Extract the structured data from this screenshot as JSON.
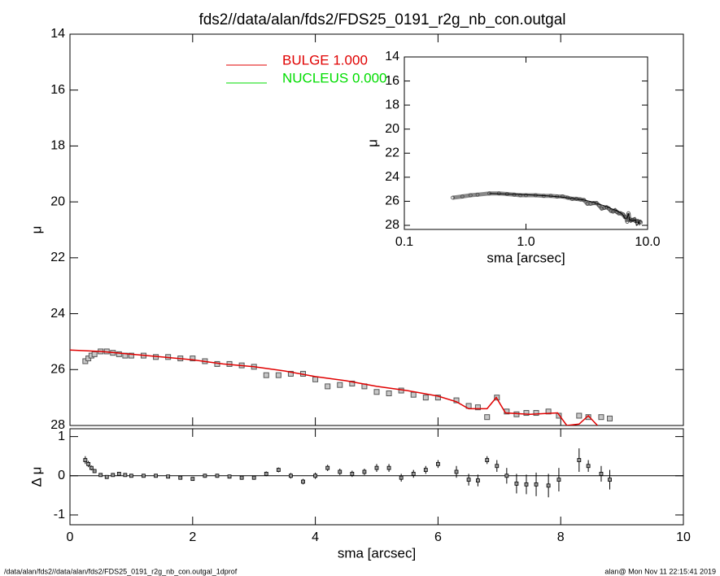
{
  "title": "fds2//data/alan/fds2/FDS25_0191_r2g_nb_con.outgal",
  "footer": {
    "left": "/data/alan/fds2//data/alan/fds2/FDS25_0191_r2g_nb_con.outgal_1dprof",
    "right": "alan@  Mon Nov 11 22:15:41 2019"
  },
  "chart_data": [
    {
      "type": "line",
      "ylabel": "μ",
      "xlim": [
        0,
        10
      ],
      "xticks": [
        0,
        2,
        4,
        6,
        8,
        10
      ],
      "x_tick_labels": false,
      "ylim": [
        28,
        14
      ],
      "yticks": [
        14,
        16,
        18,
        20,
        22,
        24,
        26,
        28
      ],
      "points": {
        "color": "#555555",
        "x": [
          0.25,
          0.3,
          0.35,
          0.4,
          0.5,
          0.6,
          0.7,
          0.8,
          0.9,
          1.0,
          1.2,
          1.4,
          1.6,
          1.8,
          2.0,
          2.2,
          2.4,
          2.6,
          2.8,
          3.0,
          3.2,
          3.4,
          3.6,
          3.8,
          4.0,
          4.2,
          4.4,
          4.6,
          4.8,
          5.0,
          5.2,
          5.4,
          5.6,
          5.8,
          6.0,
          6.3,
          6.5,
          6.65,
          6.8,
          6.96,
          7.12,
          7.28,
          7.44,
          7.6,
          7.8,
          7.97,
          8.3,
          8.45,
          8.66,
          8.8
        ],
        "values": [
          25.7,
          25.6,
          25.5,
          25.45,
          25.35,
          25.35,
          25.4,
          25.45,
          25.5,
          25.5,
          25.5,
          25.55,
          25.55,
          25.6,
          25.6,
          25.7,
          25.8,
          25.8,
          25.85,
          25.9,
          26.2,
          26.2,
          26.15,
          26.15,
          26.35,
          26.6,
          26.55,
          26.5,
          26.6,
          26.8,
          26.85,
          26.75,
          26.9,
          27.0,
          27.0,
          27.1,
          27.3,
          27.35,
          27.7,
          27.0,
          27.5,
          27.6,
          27.55,
          27.55,
          27.5,
          27.65,
          27.65,
          27.7,
          27.7,
          27.75
        ]
      },
      "series": [
        {
          "name": "BULGE  1.000",
          "color": "#e00000",
          "x": [
            0,
            0.5,
            1,
            1.5,
            2,
            2.5,
            3,
            3.5,
            4,
            4.5,
            5,
            5.5,
            6,
            6.3,
            6.5,
            6.8,
            6.95,
            7.1,
            7.5,
            7.95,
            8.1,
            8.3,
            8.45,
            8.6
          ],
          "values": [
            25.3,
            25.35,
            25.45,
            25.55,
            25.65,
            25.8,
            25.9,
            26.05,
            26.25,
            26.4,
            26.6,
            26.75,
            26.95,
            27.15,
            27.4,
            27.4,
            27.0,
            27.55,
            27.6,
            27.55,
            28.0,
            27.95,
            27.65,
            28.0
          ]
        },
        {
          "name": "NUCLEUS  0.000",
          "color": "#00dd00"
        }
      ]
    },
    {
      "type": "errorbar",
      "ylabel": "Δ μ",
      "xlabel": "sma [arcsec]",
      "xlim": [
        0,
        10
      ],
      "xticks": [
        0,
        2,
        4,
        6,
        8,
        10
      ],
      "x_tick_labels": true,
      "ylim": [
        -1.25,
        1.2
      ],
      "yticks": [
        -1,
        0,
        1
      ],
      "reference_line": 0,
      "color": "#000000",
      "x": [
        0.25,
        0.3,
        0.35,
        0.4,
        0.5,
        0.6,
        0.7,
        0.8,
        0.9,
        1.0,
        1.2,
        1.4,
        1.6,
        1.8,
        2.0,
        2.2,
        2.4,
        2.6,
        2.8,
        3.0,
        3.2,
        3.4,
        3.6,
        3.8,
        4.0,
        4.2,
        4.4,
        4.6,
        4.8,
        5.0,
        5.2,
        5.4,
        5.6,
        5.8,
        6.0,
        6.3,
        6.5,
        6.65,
        6.8,
        6.96,
        7.12,
        7.28,
        7.44,
        7.6,
        7.8,
        7.97,
        8.3,
        8.45,
        8.66,
        8.8
      ],
      "values": [
        0.4,
        0.3,
        0.2,
        0.12,
        0.02,
        -0.03,
        0.02,
        0.05,
        0.02,
        0.0,
        0.0,
        0.0,
        -0.02,
        -0.05,
        -0.08,
        0.0,
        0.0,
        -0.02,
        -0.05,
        -0.05,
        0.05,
        0.15,
        0.0,
        -0.15,
        0.0,
        0.2,
        0.1,
        0.05,
        0.1,
        0.2,
        0.2,
        -0.05,
        0.05,
        0.15,
        0.3,
        0.1,
        -0.1,
        -0.12,
        0.4,
        0.25,
        0.0,
        -0.2,
        -0.22,
        -0.22,
        -0.25,
        -0.1,
        0.4,
        0.25,
        0.05,
        -0.1
      ],
      "errors": [
        0.1,
        0.08,
        0.06,
        0.05,
        0.04,
        0.04,
        0.04,
        0.04,
        0.04,
        0.04,
        0.04,
        0.04,
        0.04,
        0.04,
        0.04,
        0.05,
        0.05,
        0.05,
        0.05,
        0.05,
        0.06,
        0.06,
        0.07,
        0.07,
        0.08,
        0.08,
        0.08,
        0.08,
        0.08,
        0.1,
        0.1,
        0.1,
        0.1,
        0.1,
        0.1,
        0.15,
        0.15,
        0.15,
        0.1,
        0.15,
        0.2,
        0.25,
        0.25,
        0.3,
        0.3,
        0.3,
        0.3,
        0.15,
        0.2,
        0.25
      ]
    },
    {
      "type": "inset",
      "ylabel": "μ",
      "xlabel": "sma [arcsec]",
      "log_x": true,
      "xlim": [
        0.1,
        10
      ],
      "xticks": [
        {
          "value": 0.1,
          "label": "0.1"
        },
        {
          "value": 1,
          "label": "1.0"
        },
        {
          "value": 10,
          "label": "10.0"
        }
      ],
      "x_tick_labels": true,
      "ylim": [
        28.34,
        14
      ],
      "yticks": [
        14,
        16,
        18,
        20,
        22,
        24,
        26,
        28
      ],
      "color": "#888888",
      "model_color": "#000000"
    }
  ]
}
